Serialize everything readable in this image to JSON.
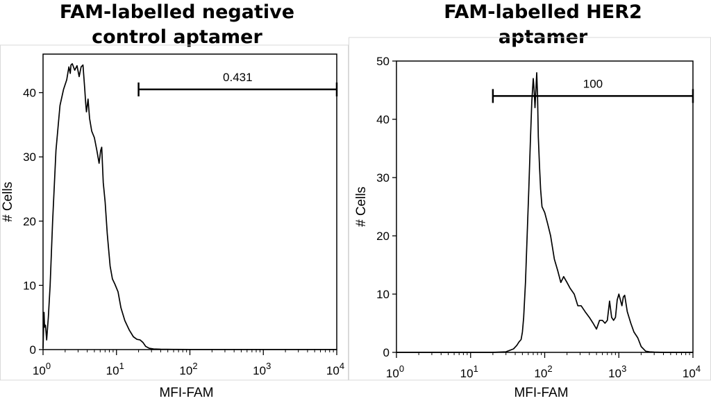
{
  "chart_data": [
    {
      "type": "line",
      "title": "FAM-labelled negative control aptamer",
      "xlabel": "MFI-FAM",
      "ylabel": "# Cells",
      "xscale": "log",
      "xlim": [
        1,
        10000
      ],
      "ylim": [
        0,
        46
      ],
      "yticks": [
        0,
        10,
        20,
        30,
        40
      ],
      "xticks": [
        {
          "base": "10",
          "exp": "0"
        },
        {
          "base": "10",
          "exp": "1"
        },
        {
          "base": "10",
          "exp": "2"
        },
        {
          "base": "10",
          "exp": "3"
        },
        {
          "base": "10",
          "exp": "4"
        }
      ],
      "gate": {
        "label": "0.431",
        "x_start": 20,
        "x_end": 10000,
        "y": 40.5
      },
      "series": [
        {
          "x": [
            1.0,
            1.03,
            1.05,
            1.08,
            1.12,
            1.18,
            1.25,
            1.35,
            1.5,
            1.7,
            1.9,
            2.1,
            2.25,
            2.35,
            2.4,
            2.5,
            2.7,
            2.9,
            3.1,
            3.3,
            3.5,
            3.7,
            3.8,
            3.9,
            4.0,
            4.1,
            4.3,
            4.6,
            5.0,
            5.4,
            5.8,
            6.1,
            6.3,
            6.6,
            7.0,
            7.5,
            8.2,
            8.8,
            9.5,
            10.5,
            11.5,
            13,
            15,
            17,
            19,
            21,
            23,
            25,
            28,
            32,
            40,
            60,
            100,
            1000,
            10000
          ],
          "y": [
            0.2,
            5.8,
            3.5,
            3.8,
            1.5,
            5,
            10,
            20,
            31,
            38,
            40.5,
            42,
            44,
            43,
            44.3,
            44.5,
            43.5,
            44.2,
            42.5,
            44,
            44.3,
            40.5,
            38.5,
            37,
            38,
            39,
            36,
            34,
            33,
            31,
            29,
            31,
            31.5,
            26,
            23,
            18,
            13,
            11,
            10.2,
            9,
            6.5,
            4.5,
            3,
            2,
            1.6,
            1.5,
            1.1,
            0.5,
            0.2,
            0.1,
            0.05,
            0.03,
            0.02,
            0.02,
            0.02
          ]
        }
      ]
    },
    {
      "type": "line",
      "title": "FAM-labelled HER2 aptamer",
      "xlabel": "MFI-FAM",
      "ylabel": "# Cells",
      "xscale": "log",
      "xlim": [
        1,
        10000
      ],
      "ylim": [
        0,
        50
      ],
      "yticks": [
        0,
        10,
        20,
        30,
        40,
        50
      ],
      "xticks": [
        {
          "base": "10",
          "exp": "0"
        },
        {
          "base": "10",
          "exp": "1"
        },
        {
          "base": "10",
          "exp": "2"
        },
        {
          "base": "10",
          "exp": "3"
        },
        {
          "base": "10",
          "exp": "4"
        }
      ],
      "gate": {
        "label": "100",
        "x_start": 20,
        "x_end": 10000,
        "y": 44
      },
      "series": [
        {
          "x": [
            1,
            5,
            10,
            20,
            30,
            38,
            42,
            45,
            48,
            50,
            52,
            55,
            58,
            61,
            64,
            67,
            70,
            72,
            74,
            76,
            78,
            80,
            82,
            85,
            88,
            92,
            100,
            110,
            120,
            135,
            150,
            165,
            180,
            200,
            220,
            250,
            280,
            310,
            350,
            400,
            450,
            500,
            550,
            600,
            650,
            700,
            750,
            800,
            850,
            900,
            950,
            1000,
            1050,
            1100,
            1150,
            1200,
            1300,
            1450,
            1600,
            1800,
            2000,
            2300,
            2600,
            3000,
            4000,
            10000
          ],
          "y": [
            0,
            0,
            0,
            0,
            0.1,
            0.6,
            1.2,
            1.8,
            2.2,
            3.5,
            6,
            12,
            20,
            28,
            36,
            43,
            47,
            45,
            42,
            45,
            48,
            44,
            37,
            32,
            28,
            25,
            24,
            22,
            20,
            16,
            14,
            12,
            13,
            12,
            11,
            10,
            8,
            8,
            7,
            6,
            5,
            4,
            5.5,
            5.5,
            5,
            5.5,
            8.8,
            6,
            5.5,
            6,
            9,
            10,
            9,
            8,
            9.5,
            9.8,
            7,
            5,
            3.5,
            2.5,
            1,
            0.2,
            0.1,
            0.05,
            0,
            0
          ]
        }
      ]
    }
  ]
}
